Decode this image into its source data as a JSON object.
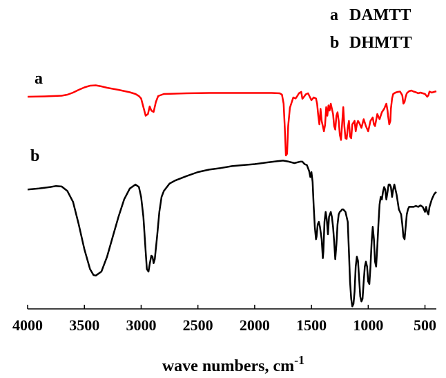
{
  "chart_data": {
    "type": "line",
    "xlabel": "wave numbers, cm",
    "xlabel_superscript": "-1",
    "xlim": [
      4000,
      400
    ],
    "x_reversed": true,
    "y_axis_visible": false,
    "grid": false,
    "legend_position": "top-right",
    "x_ticks": [
      4000,
      3500,
      3000,
      2500,
      2000,
      1500,
      1000,
      500
    ],
    "x_tick_labels": [
      "4000",
      "3500",
      "3000",
      "2500",
      "2000",
      "1500",
      "1000",
      "500"
    ],
    "legend": [
      {
        "letter": "a",
        "name": "DAMTT"
      },
      {
        "letter": "b",
        "name": "DHMTT"
      }
    ],
    "series": [
      {
        "name": "DAMTT",
        "label": "a",
        "color": "#ff0000",
        "points": [
          [
            4000,
            60
          ],
          [
            3850,
            61
          ],
          [
            3700,
            63
          ],
          [
            3650,
            66
          ],
          [
            3600,
            72
          ],
          [
            3550,
            80
          ],
          [
            3500,
            87
          ],
          [
            3450,
            92
          ],
          [
            3400,
            93
          ],
          [
            3350,
            90
          ],
          [
            3300,
            86
          ],
          [
            3200,
            80
          ],
          [
            3100,
            73
          ],
          [
            3050,
            68
          ],
          [
            3020,
            62
          ],
          [
            3000,
            55
          ],
          [
            2980,
            30
          ],
          [
            2960,
            5
          ],
          [
            2940,
            10
          ],
          [
            2925,
            32
          ],
          [
            2910,
            20
          ],
          [
            2890,
            16
          ],
          [
            2870,
            45
          ],
          [
            2850,
            62
          ],
          [
            2800,
            68
          ],
          [
            2600,
            70
          ],
          [
            2400,
            71
          ],
          [
            2200,
            71
          ],
          [
            2000,
            71
          ],
          [
            1850,
            71
          ],
          [
            1780,
            70
          ],
          [
            1760,
            66
          ],
          [
            1745,
            40
          ],
          [
            1735,
            -30
          ],
          [
            1725,
            -110
          ],
          [
            1715,
            -105
          ],
          [
            1705,
            -25
          ],
          [
            1690,
            28
          ],
          [
            1660,
            58
          ],
          [
            1640,
            55
          ],
          [
            1625,
            62
          ],
          [
            1610,
            70
          ],
          [
            1590,
            74
          ],
          [
            1580,
            54
          ],
          [
            1565,
            60
          ],
          [
            1550,
            67
          ],
          [
            1530,
            70
          ],
          [
            1500,
            50
          ],
          [
            1480,
            58
          ],
          [
            1460,
            55
          ],
          [
            1450,
            40
          ],
          [
            1440,
            5
          ],
          [
            1430,
            -20
          ],
          [
            1420,
            25
          ],
          [
            1410,
            -10
          ],
          [
            1400,
            -25
          ],
          [
            1390,
            -40
          ],
          [
            1380,
            -22
          ],
          [
            1370,
            30
          ],
          [
            1360,
            5
          ],
          [
            1350,
            35
          ],
          [
            1340,
            20
          ],
          [
            1330,
            40
          ],
          [
            1310,
            10
          ],
          [
            1300,
            -25
          ],
          [
            1290,
            -35
          ],
          [
            1280,
            5
          ],
          [
            1270,
            15
          ],
          [
            1260,
            -10
          ],
          [
            1250,
            -50
          ],
          [
            1240,
            -65
          ],
          [
            1230,
            -20
          ],
          [
            1220,
            30
          ],
          [
            1210,
            -25
          ],
          [
            1200,
            -60
          ],
          [
            1190,
            -62
          ],
          [
            1180,
            -30
          ],
          [
            1170,
            -10
          ],
          [
            1160,
            -55
          ],
          [
            1150,
            -60
          ],
          [
            1140,
            -20
          ],
          [
            1120,
            -10
          ],
          [
            1110,
            -40
          ],
          [
            1100,
            -20
          ],
          [
            1090,
            -10
          ],
          [
            1080,
            -15
          ],
          [
            1060,
            -30
          ],
          [
            1040,
            -5
          ],
          [
            1020,
            -25
          ],
          [
            1000,
            -40
          ],
          [
            980,
            -10
          ],
          [
            960,
            0
          ],
          [
            950,
            -20
          ],
          [
            940,
            -25
          ],
          [
            920,
            10
          ],
          [
            900,
            -5
          ],
          [
            880,
            15
          ],
          [
            860,
            25
          ],
          [
            840,
            40
          ],
          [
            830,
            20
          ],
          [
            825,
            5
          ],
          [
            815,
            -20
          ],
          [
            805,
            -10
          ],
          [
            800,
            25
          ],
          [
            790,
            55
          ],
          [
            780,
            68
          ],
          [
            760,
            72
          ],
          [
            740,
            74
          ],
          [
            720,
            75
          ],
          [
            710,
            70
          ],
          [
            700,
            64
          ],
          [
            690,
            40
          ],
          [
            680,
            45
          ],
          [
            670,
            60
          ],
          [
            660,
            70
          ],
          [
            640,
            76
          ],
          [
            620,
            78
          ],
          [
            600,
            75
          ],
          [
            580,
            73
          ],
          [
            560,
            70
          ],
          [
            540,
            72
          ],
          [
            520,
            70
          ],
          [
            500,
            68
          ],
          [
            480,
            60
          ],
          [
            470,
            64
          ],
          [
            460,
            75
          ],
          [
            440,
            72
          ],
          [
            420,
            74
          ],
          [
            400,
            76
          ]
        ]
      },
      {
        "name": "DHMTT",
        "label": "b",
        "color": "#000000",
        "points": [
          [
            4000,
            15
          ],
          [
            3900,
            17
          ],
          [
            3800,
            20
          ],
          [
            3750,
            22
          ],
          [
            3700,
            21
          ],
          [
            3650,
            12
          ],
          [
            3600,
            -10
          ],
          [
            3550,
            -55
          ],
          [
            3500,
            -105
          ],
          [
            3450,
            -145
          ],
          [
            3420,
            -157
          ],
          [
            3400,
            -158
          ],
          [
            3350,
            -150
          ],
          [
            3300,
            -120
          ],
          [
            3250,
            -80
          ],
          [
            3200,
            -40
          ],
          [
            3150,
            -5
          ],
          [
            3100,
            17
          ],
          [
            3050,
            25
          ],
          [
            3020,
            20
          ],
          [
            3000,
            0
          ],
          [
            2980,
            -40
          ],
          [
            2960,
            -110
          ],
          [
            2950,
            -145
          ],
          [
            2935,
            -150
          ],
          [
            2925,
            -135
          ],
          [
            2910,
            -118
          ],
          [
            2900,
            -120
          ],
          [
            2890,
            -133
          ],
          [
            2880,
            -125
          ],
          [
            2860,
            -80
          ],
          [
            2840,
            -30
          ],
          [
            2820,
            0
          ],
          [
            2800,
            12
          ],
          [
            2750,
            27
          ],
          [
            2700,
            33
          ],
          [
            2600,
            42
          ],
          [
            2500,
            50
          ],
          [
            2400,
            55
          ],
          [
            2300,
            58
          ],
          [
            2200,
            62
          ],
          [
            2100,
            64
          ],
          [
            2000,
            66
          ],
          [
            1900,
            69
          ],
          [
            1800,
            72
          ],
          [
            1750,
            73
          ],
          [
            1700,
            71
          ],
          [
            1650,
            68
          ],
          [
            1600,
            71
          ],
          [
            1580,
            71
          ],
          [
            1560,
            66
          ],
          [
            1540,
            64
          ],
          [
            1520,
            52
          ],
          [
            1510,
            40
          ],
          [
            1500,
            50
          ],
          [
            1490,
            30
          ],
          [
            1480,
            -20
          ],
          [
            1470,
            -60
          ],
          [
            1460,
            -85
          ],
          [
            1455,
            -80
          ],
          [
            1445,
            -55
          ],
          [
            1435,
            -50
          ],
          [
            1425,
            -60
          ],
          [
            1410,
            -85
          ],
          [
            1400,
            -123
          ],
          [
            1395,
            -110
          ],
          [
            1385,
            -50
          ],
          [
            1375,
            -30
          ],
          [
            1365,
            -45
          ],
          [
            1355,
            -75
          ],
          [
            1345,
            -40
          ],
          [
            1330,
            -30
          ],
          [
            1320,
            -40
          ],
          [
            1310,
            -60
          ],
          [
            1300,
            -90
          ],
          [
            1290,
            -125
          ],
          [
            1280,
            -95
          ],
          [
            1270,
            -55
          ],
          [
            1260,
            -35
          ],
          [
            1250,
            -30
          ],
          [
            1240,
            -28
          ],
          [
            1230,
            -25
          ],
          [
            1220,
            -25
          ],
          [
            1200,
            -30
          ],
          [
            1180,
            -50
          ],
          [
            1170,
            -110
          ],
          [
            1160,
            -170
          ],
          [
            1150,
            -205
          ],
          [
            1140,
            -220
          ],
          [
            1130,
            -215
          ],
          [
            1120,
            -190
          ],
          [
            1110,
            -140
          ],
          [
            1100,
            -120
          ],
          [
            1090,
            -128
          ],
          [
            1080,
            -165
          ],
          [
            1070,
            -200
          ],
          [
            1060,
            -210
          ],
          [
            1050,
            -205
          ],
          [
            1040,
            -170
          ],
          [
            1030,
            -140
          ],
          [
            1020,
            -130
          ],
          [
            1010,
            -140
          ],
          [
            1000,
            -170
          ],
          [
            990,
            -175
          ],
          [
            980,
            -140
          ],
          [
            970,
            -90
          ],
          [
            960,
            -60
          ],
          [
            950,
            -85
          ],
          [
            940,
            -130
          ],
          [
            930,
            -140
          ],
          [
            920,
            -100
          ],
          [
            910,
            -55
          ],
          [
            900,
            -15
          ],
          [
            890,
            0
          ],
          [
            880,
            -5
          ],
          [
            870,
            10
          ],
          [
            860,
            20
          ],
          [
            850,
            15
          ],
          [
            840,
            -5
          ],
          [
            830,
            10
          ],
          [
            820,
            25
          ],
          [
            810,
            25
          ],
          [
            800,
            20
          ],
          [
            790,
            0
          ],
          [
            780,
            15
          ],
          [
            770,
            25
          ],
          [
            760,
            15
          ],
          [
            750,
            5
          ],
          [
            740,
            -10
          ],
          [
            730,
            -25
          ],
          [
            720,
            -30
          ],
          [
            710,
            -35
          ],
          [
            700,
            -55
          ],
          [
            690,
            -80
          ],
          [
            680,
            -85
          ],
          [
            670,
            -60
          ],
          [
            660,
            -35
          ],
          [
            650,
            -25
          ],
          [
            640,
            -20
          ],
          [
            600,
            -20
          ],
          [
            580,
            -18
          ],
          [
            560,
            -20
          ],
          [
            540,
            -17
          ],
          [
            520,
            -20
          ],
          [
            500,
            -30
          ],
          [
            490,
            -20
          ],
          [
            480,
            -30
          ],
          [
            470,
            -35
          ],
          [
            460,
            -20
          ],
          [
            440,
            -5
          ],
          [
            420,
            5
          ],
          [
            410,
            8
          ],
          [
            400,
            10
          ]
        ]
      }
    ]
  }
}
